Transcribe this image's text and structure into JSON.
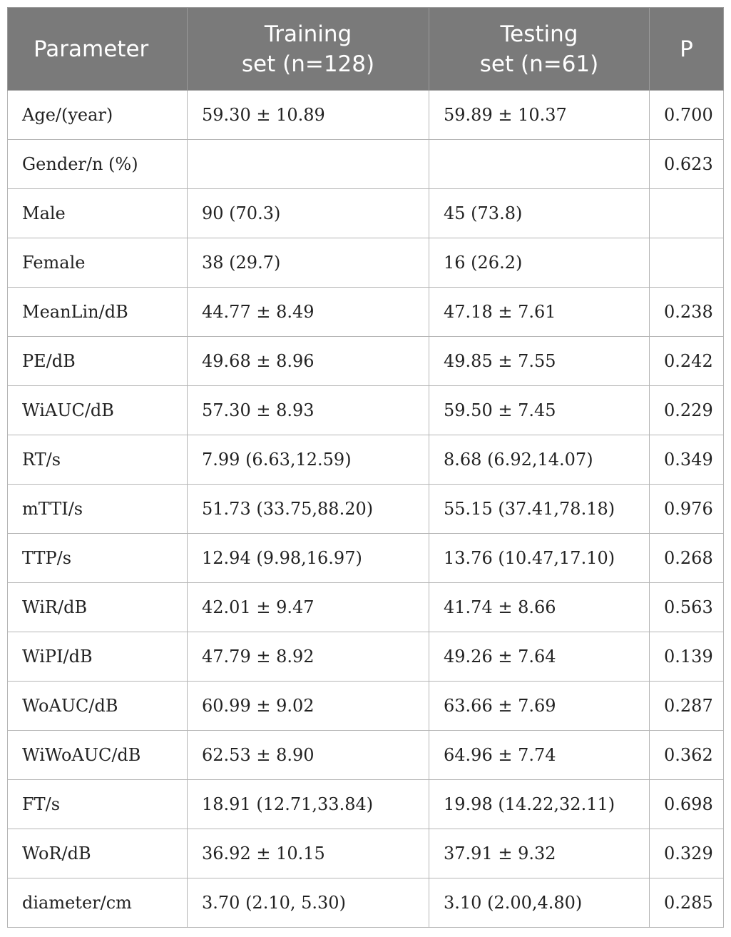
{
  "table": {
    "headers": [
      {
        "lines": [
          "Parameter"
        ]
      },
      {
        "lines": [
          "Training",
          "set (n=128)"
        ]
      },
      {
        "lines": [
          "Testing",
          "set (n=61)"
        ]
      },
      {
        "lines": [
          "P"
        ]
      }
    ],
    "rows": [
      [
        "Age/(year)",
        "59.30 ± 10.89",
        "59.89 ± 10.37",
        "0.700"
      ],
      [
        "Gender/n (%)",
        "",
        "",
        "0.623"
      ],
      [
        "Male",
        "90 (70.3)",
        "45 (73.8)",
        ""
      ],
      [
        "Female",
        "38 (29.7)",
        "16 (26.2)",
        ""
      ],
      [
        "MeanLin/dB",
        "44.77 ± 8.49",
        "47.18 ± 7.61",
        "0.238"
      ],
      [
        "PE/dB",
        "49.68 ± 8.96",
        "49.85 ± 7.55",
        "0.242"
      ],
      [
        "WiAUC/dB",
        "57.30 ± 8.93",
        "59.50 ± 7.45",
        "0.229"
      ],
      [
        "RT/s",
        "7.99 (6.63,12.59)",
        "8.68 (6.92,14.07)",
        "0.349"
      ],
      [
        "mTTI/s",
        "51.73 (33.75,88.20)",
        "55.15 (37.41,78.18)",
        "0.976"
      ],
      [
        "TTP/s",
        "12.94 (9.98,16.97)",
        "13.76 (10.47,17.10)",
        "0.268"
      ],
      [
        "WiR/dB",
        "42.01 ± 9.47",
        "41.74 ± 8.66",
        "0.563"
      ],
      [
        "WiPI/dB",
        "47.79 ± 8.92",
        "49.26 ± 7.64",
        "0.139"
      ],
      [
        "WoAUC/dB",
        "60.99 ± 9.02",
        "63.66 ± 7.69",
        "0.287"
      ],
      [
        "WiWoAUC/dB",
        "62.53 ± 8.90",
        "64.96 ± 7.74",
        "0.362"
      ],
      [
        "FT/s",
        "18.91 (12.71,33.84)",
        "19.98 (14.22,32.11)",
        "0.698"
      ],
      [
        "WoR/dB",
        "36.92 ± 10.15",
        "37.91 ± 9.32",
        "0.329"
      ],
      [
        "diameter/cm",
        "3.70 (2.10, 5.30)",
        "3.10 (2.00,4.80)",
        "0.285"
      ]
    ]
  },
  "colors": {
    "header_bg": "#7a7a7a",
    "header_text": "#ffffff",
    "border": "#b5b5b5"
  }
}
